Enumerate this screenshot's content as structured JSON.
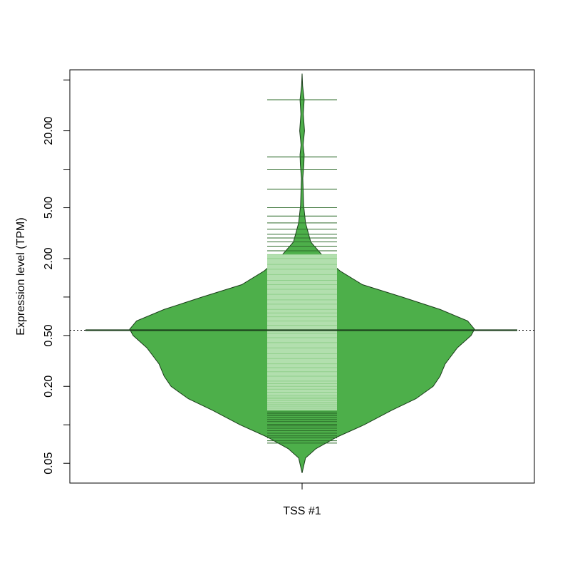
{
  "chart_data": {
    "type": "beanplot",
    "ylabel": "Expression level (TPM)",
    "y_scale": "log10",
    "ylim": [
      0.035,
      60
    ],
    "y_ticks": [
      {
        "value": 0.05,
        "label": "0.05"
      },
      {
        "value": 0.1,
        "label": ""
      },
      {
        "value": 0.2,
        "label": "0.20"
      },
      {
        "value": 0.5,
        "label": "0.50"
      },
      {
        "value": 1,
        "label": ""
      },
      {
        "value": 2,
        "label": "2.00"
      },
      {
        "value": 5,
        "label": "5.00"
      },
      {
        "value": 10,
        "label": ""
      },
      {
        "value": 20,
        "label": "20.00"
      },
      {
        "value": 50,
        "label": ""
      }
    ],
    "categories": [
      "TSS #1"
    ],
    "colors": {
      "bean_fill": "#4DAF4A",
      "bean_outline": "#1a3d1a",
      "beanline": "#1a3d1a",
      "box_fill": "#b2dfae",
      "box_line": "#8fcf8a",
      "outer_line": "#2d6b2a"
    },
    "series": [
      {
        "category": "TSS #1",
        "median": 0.55,
        "box_range": [
          0.13,
          2.15
        ],
        "density": [
          [
            0.042,
            0
          ],
          [
            0.055,
            0.02
          ],
          [
            0.065,
            0.08
          ],
          [
            0.08,
            0.2
          ],
          [
            0.1,
            0.36
          ],
          [
            0.13,
            0.52
          ],
          [
            0.16,
            0.66
          ],
          [
            0.2,
            0.76
          ],
          [
            0.24,
            0.8
          ],
          [
            0.3,
            0.83
          ],
          [
            0.4,
            0.9
          ],
          [
            0.5,
            0.98
          ],
          [
            0.56,
            1.0
          ],
          [
            0.65,
            0.96
          ],
          [
            0.8,
            0.8
          ],
          [
            1.0,
            0.58
          ],
          [
            1.25,
            0.35
          ],
          [
            1.6,
            0.22
          ],
          [
            2.1,
            0.12
          ],
          [
            2.7,
            0.05
          ],
          [
            3.8,
            0.02
          ],
          [
            5.2,
            0.009
          ],
          [
            8.5,
            0.004
          ],
          [
            10.8,
            0.01
          ],
          [
            13,
            0.012
          ],
          [
            15.5,
            0.006
          ],
          [
            20,
            0.014
          ],
          [
            27,
            0.007
          ],
          [
            35,
            0.012
          ],
          [
            45,
            0.003
          ],
          [
            56,
            0
          ]
        ],
        "points": [
          0.072,
          0.075,
          0.079,
          0.082,
          0.086,
          0.09,
          0.094,
          0.098,
          0.101,
          0.106,
          0.11,
          0.114,
          0.118,
          0.122,
          0.126,
          0.13,
          0.135,
          0.14,
          0.145,
          0.15,
          0.155,
          0.16,
          0.165,
          0.17,
          0.18,
          0.19,
          0.2,
          0.21,
          0.22,
          0.24,
          0.26,
          0.28,
          0.3,
          0.33,
          0.36,
          0.4,
          0.44,
          0.48,
          0.52,
          0.55,
          0.6,
          0.65,
          0.7,
          0.75,
          0.8,
          0.88,
          0.95,
          1.05,
          1.15,
          1.25,
          1.35,
          1.5,
          1.65,
          1.8,
          2.0,
          2.15,
          2.3,
          2.5,
          2.7,
          2.9,
          3.1,
          3.4,
          3.8,
          4.3,
          5.0,
          7.0,
          10.0,
          12.5,
          35.0
        ]
      }
    ]
  }
}
